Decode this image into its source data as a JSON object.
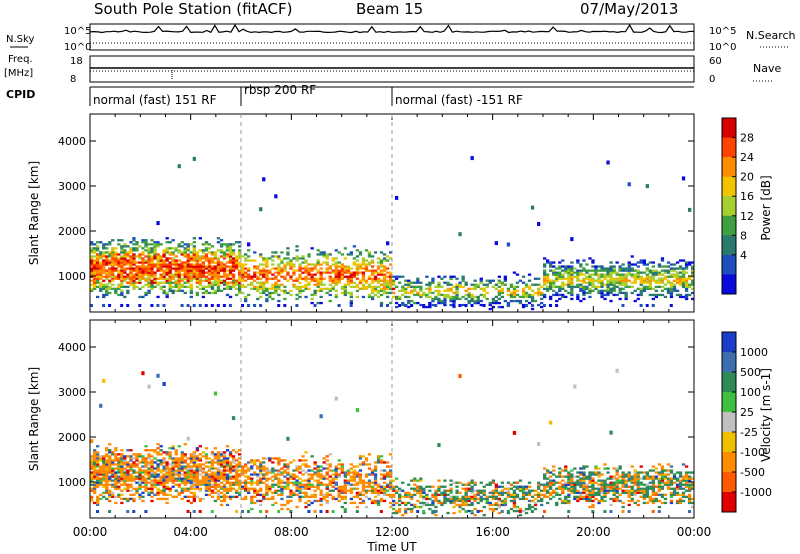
{
  "header": {
    "title": "South Pole Station (fitACF)",
    "beam": "Beam 15",
    "date": "07/May/2013"
  },
  "top_panels": {
    "nsky_label": "N.Sky",
    "nsearch_label": "N.Search",
    "freq_label_1": "Freq.",
    "freq_label_2": "[MHz]",
    "nave_label": "Nave",
    "cpid_label": "CPID",
    "noise_tick_high": "10^5",
    "noise_tick_low": "10^0",
    "freq_tick_high": "18",
    "freq_tick_low": "8",
    "nave_tick_high": "60",
    "nave_tick_low": "0"
  },
  "cpid_segments": [
    {
      "label": "normal (fast) 151 RF",
      "start_hour": 0
    },
    {
      "label": "rbsp 200 RF",
      "start_hour": 6
    },
    {
      "label": "normal (fast) -151 RF",
      "start_hour": 12
    }
  ],
  "x_axis": {
    "label": "Time UT",
    "ticks": [
      "00:00",
      "04:00",
      "08:00",
      "12:00",
      "16:00",
      "20:00",
      "00:00"
    ],
    "range_hours": [
      0,
      24
    ]
  },
  "power_colorbar": {
    "label": "Power [dB]",
    "ticks": [
      "28",
      "24",
      "20",
      "16",
      "12",
      "8",
      "4"
    ],
    "colors": [
      "#d90000",
      "#ff4400",
      "#ff8c00",
      "#f2c400",
      "#a8cf30",
      "#3fa03f",
      "#2a7a6e",
      "#1f4fbf",
      "#0a0adc"
    ]
  },
  "velocity_colorbar": {
    "label": "Velocity [m s-1]",
    "ticks": [
      "1000",
      "500",
      "100",
      "25",
      "-25",
      "-100",
      "-500",
      "-1000"
    ],
    "colors": [
      "#1a3fc8",
      "#3d6fb0",
      "#2e8b57",
      "#40c040",
      "#c0c0c0",
      "#f0c000",
      "#ff8c00",
      "#ff5a00",
      "#e00000"
    ]
  },
  "chart_data": [
    {
      "type": "heatmap",
      "name": "power",
      "ylabel": "Slant Range [km]",
      "xlabel": "",
      "y_ticks": [
        "1000",
        "2000",
        "3000",
        "4000"
      ],
      "ylim": [
        200,
        4600
      ],
      "y_tick_values": [
        1000,
        2000,
        3000,
        4000
      ],
      "xlim": [
        0,
        24
      ],
      "clim": [
        0,
        30
      ]
    },
    {
      "type": "heatmap",
      "name": "velocity",
      "ylabel": "Slant Range [km]",
      "xlabel": "Time UT",
      "y_ticks": [
        "1000",
        "2000",
        "3000",
        "4000"
      ],
      "ylim": [
        200,
        4600
      ],
      "y_tick_values": [
        1000,
        2000,
        3000,
        4000
      ],
      "xlim": [
        0,
        24
      ],
      "clim": [
        -1000,
        1000
      ]
    }
  ]
}
